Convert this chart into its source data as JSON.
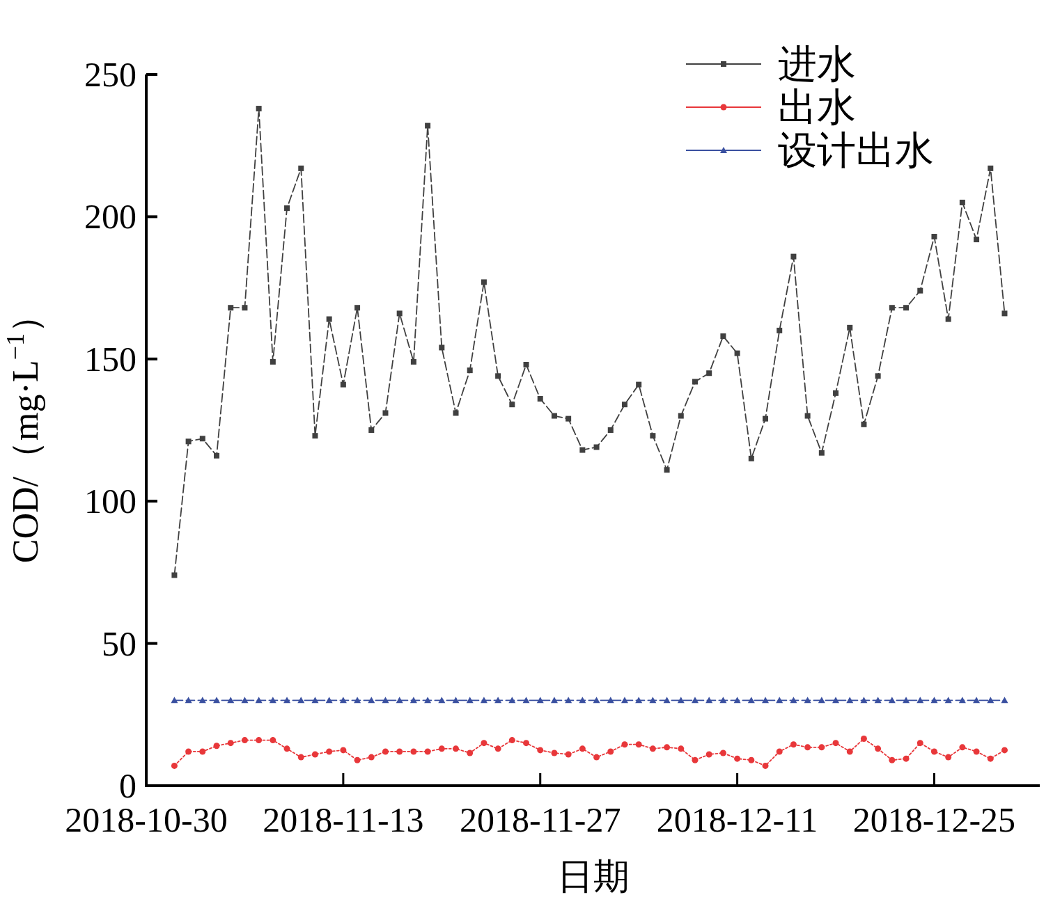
{
  "chart_data": {
    "type": "line",
    "xlabel": "日期",
    "ylabel": "COD/（mg·L$^{−1}$）",
    "x": [
      "2018-11-01",
      "2018-11-02",
      "2018-11-03",
      "2018-11-04",
      "2018-11-05",
      "2018-11-06",
      "2018-11-07",
      "2018-11-08",
      "2018-11-09",
      "2018-11-10",
      "2018-11-11",
      "2018-11-12",
      "2018-11-13",
      "2018-11-14",
      "2018-11-15",
      "2018-11-16",
      "2018-11-17",
      "2018-11-18",
      "2018-11-19",
      "2018-11-20",
      "2018-11-21",
      "2018-11-22",
      "2018-11-23",
      "2018-11-24",
      "2018-11-25",
      "2018-11-26",
      "2018-11-27",
      "2018-11-28",
      "2018-11-29",
      "2018-11-30",
      "2018-12-01",
      "2018-12-02",
      "2018-12-03",
      "2018-12-04",
      "2018-12-05",
      "2018-12-06",
      "2018-12-07",
      "2018-12-08",
      "2018-12-09",
      "2018-12-10",
      "2018-12-11",
      "2018-12-12",
      "2018-12-13",
      "2018-12-14",
      "2018-12-15",
      "2018-12-16",
      "2018-12-17",
      "2018-12-18",
      "2018-12-19",
      "2018-12-20",
      "2018-12-21",
      "2018-12-22",
      "2018-12-23",
      "2018-12-24",
      "2018-12-25",
      "2018-12-26",
      "2018-12-27",
      "2018-12-28",
      "2018-12-29",
      "2018-12-30"
    ],
    "series": [
      {
        "name": "进水",
        "color": "#404040",
        "marker": "square",
        "line_style": "dashed",
        "values": [
          74,
          121,
          122,
          116,
          168,
          168,
          238,
          149,
          203,
          217,
          123,
          164,
          141,
          168,
          125,
          131,
          166,
          149,
          232,
          154,
          131,
          146,
          177,
          144,
          134,
          148,
          136,
          130,
          129,
          118,
          119,
          125,
          134,
          141,
          123,
          111,
          130,
          142,
          145,
          158,
          152,
          115,
          129,
          160,
          186,
          130,
          117,
          138,
          161,
          127,
          144,
          168,
          168,
          174,
          193,
          164,
          205,
          192,
          217,
          166
        ]
      },
      {
        "name": "出水",
        "color": "#e8373a",
        "marker": "circle",
        "line_style": "dotted",
        "values": [
          7,
          12,
          12,
          14,
          15,
          16,
          16,
          16,
          13,
          10,
          11,
          12,
          12.5,
          9,
          10,
          12,
          12,
          12,
          12,
          13,
          13,
          11.5,
          15,
          13,
          16,
          15,
          12.5,
          11.5,
          11,
          13,
          10,
          12,
          14.5,
          14.5,
          13,
          13.5,
          13,
          9,
          11,
          11.5,
          9.5,
          9,
          7,
          12,
          14.5,
          13.5,
          13.5,
          15,
          12,
          16.5,
          13,
          9,
          9.5,
          15,
          12,
          10,
          13.5,
          12,
          9.5,
          12.5
        ]
      },
      {
        "name": "设计出水",
        "color": "#3a50a0",
        "marker": "triangle",
        "line_style": "dashed",
        "values": [
          30,
          30,
          30,
          30,
          30,
          30,
          30,
          30,
          30,
          30,
          30,
          30,
          30,
          30,
          30,
          30,
          30,
          30,
          30,
          30,
          30,
          30,
          30,
          30,
          30,
          30,
          30,
          30,
          30,
          30,
          30,
          30,
          30,
          30,
          30,
          30,
          30,
          30,
          30,
          30,
          30,
          30,
          30,
          30,
          30,
          30,
          30,
          30,
          30,
          30,
          30,
          30,
          30,
          30,
          30,
          30,
          30,
          30,
          30,
          30
        ]
      }
    ],
    "xlim": [
      "2018-10-30",
      "2019-01-01T12:00"
    ],
    "xticks": [
      "2018-10-30",
      "2018-11-13",
      "2018-11-27",
      "2018-12-11",
      "2018-12-25"
    ],
    "ylim": [
      0,
      250
    ],
    "yticks": [
      0,
      50,
      100,
      150,
      200,
      250
    ],
    "grid": false,
    "legend": "top right"
  }
}
